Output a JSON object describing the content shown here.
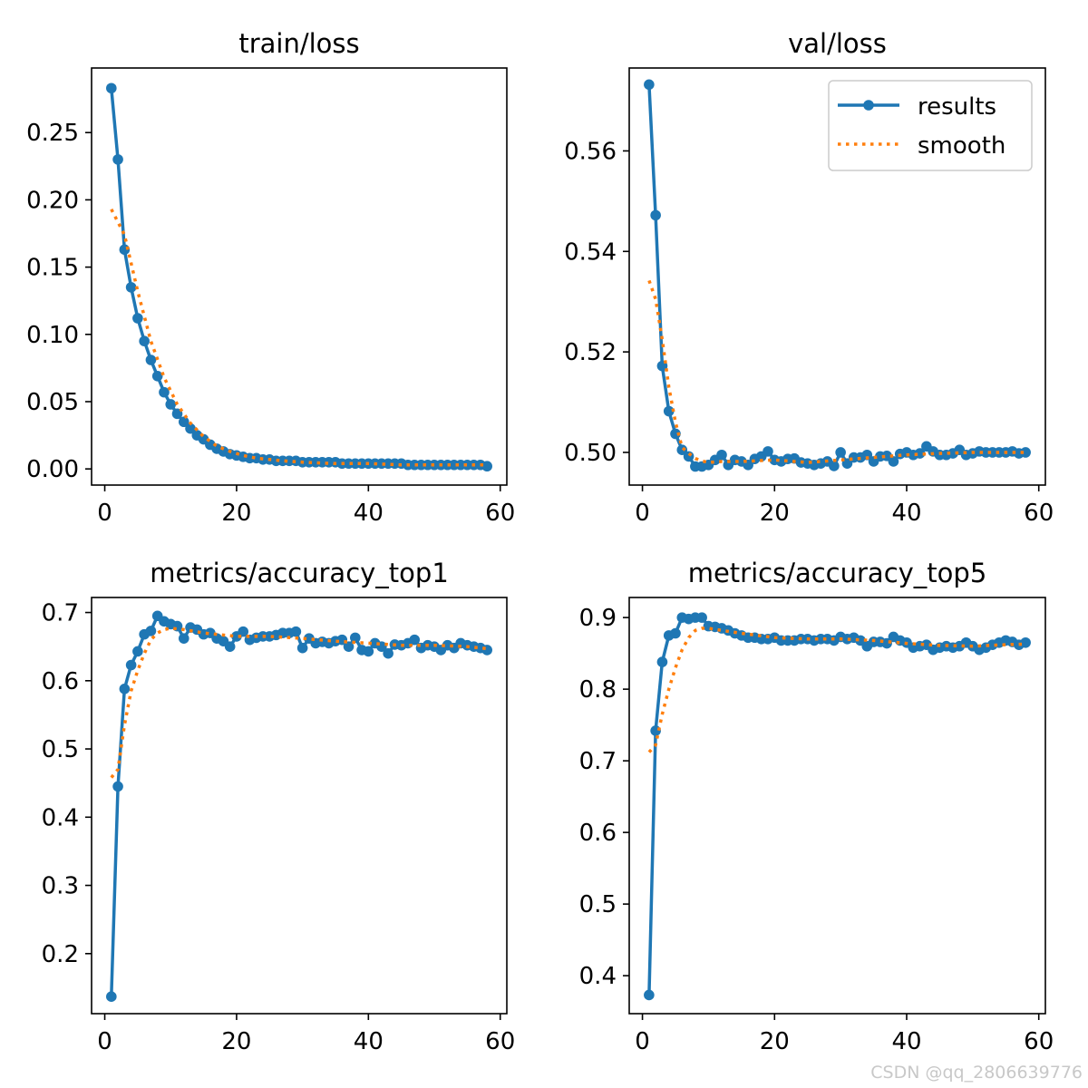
{
  "colors": {
    "results": "#1f77b4",
    "smooth": "#ff7f0e",
    "axes": "#000000",
    "background": "#ffffff"
  },
  "legend": {
    "results": "results",
    "smooth": "smooth",
    "placement": "upper right (val/loss panel)"
  },
  "watermark": "CSDN @qq_2806639776",
  "chart_data": [
    {
      "type": "line",
      "title": "train/loss",
      "xlabel": "",
      "ylabel": "",
      "xlim": [
        -2,
        61
      ],
      "ylim": [
        -0.012,
        0.298
      ],
      "x_ticks": [
        0,
        20,
        40,
        60
      ],
      "y_ticks": [
        0.0,
        0.05,
        0.1,
        0.15,
        0.2,
        0.25
      ],
      "y_tick_labels": [
        "0.00",
        "0.05",
        "0.10",
        "0.15",
        "0.20",
        "0.25"
      ],
      "grid": false,
      "series": [
        {
          "name": "results",
          "marker": "circle",
          "x": [
            1,
            2,
            3,
            4,
            5,
            6,
            7,
            8,
            9,
            10,
            11,
            12,
            13,
            14,
            15,
            16,
            17,
            18,
            19,
            20,
            21,
            22,
            23,
            24,
            25,
            26,
            27,
            28,
            29,
            30,
            31,
            32,
            33,
            34,
            35,
            36,
            37,
            38,
            39,
            40,
            41,
            42,
            43,
            44,
            45,
            46,
            47,
            48,
            49,
            50,
            51,
            52,
            53,
            54,
            55,
            56,
            57,
            58
          ],
          "values": [
            0.283,
            0.23,
            0.163,
            0.135,
            0.112,
            0.095,
            0.081,
            0.069,
            0.057,
            0.048,
            0.041,
            0.035,
            0.03,
            0.025,
            0.022,
            0.018,
            0.015,
            0.013,
            0.011,
            0.01,
            0.009,
            0.008,
            0.008,
            0.007,
            0.007,
            0.006,
            0.006,
            0.006,
            0.006,
            0.005,
            0.005,
            0.005,
            0.005,
            0.005,
            0.005,
            0.004,
            0.004,
            0.004,
            0.004,
            0.004,
            0.004,
            0.004,
            0.004,
            0.004,
            0.004,
            0.003,
            0.003,
            0.003,
            0.003,
            0.003,
            0.003,
            0.003,
            0.003,
            0.003,
            0.003,
            0.003,
            0.003,
            0.002
          ]
        },
        {
          "name": "smooth",
          "style": "dotted",
          "x": [
            1,
            3,
            5,
            7,
            9,
            11,
            13,
            15,
            17,
            19,
            21,
            23,
            25,
            27,
            30,
            35,
            40,
            45,
            50,
            55,
            58
          ],
          "values": [
            0.193,
            0.174,
            0.132,
            0.095,
            0.068,
            0.048,
            0.034,
            0.024,
            0.017,
            0.013,
            0.01,
            0.008,
            0.007,
            0.006,
            0.005,
            0.004,
            0.004,
            0.003,
            0.003,
            0.003,
            0.003
          ]
        }
      ]
    },
    {
      "type": "line",
      "title": "val/loss",
      "xlabel": "",
      "ylabel": "",
      "xlim": [
        -2,
        61
      ],
      "ylim": [
        0.4935,
        0.5765
      ],
      "x_ticks": [
        0,
        20,
        40,
        60
      ],
      "y_ticks": [
        0.5,
        0.52,
        0.54,
        0.56
      ],
      "y_tick_labels": [
        "0.50",
        "0.52",
        "0.54",
        "0.56"
      ],
      "grid": false,
      "legend": "top-right",
      "series": [
        {
          "name": "results",
          "marker": "circle",
          "x": [
            1,
            2,
            3,
            4,
            5,
            6,
            7,
            8,
            9,
            10,
            11,
            12,
            13,
            14,
            15,
            16,
            17,
            18,
            19,
            20,
            21,
            22,
            23,
            24,
            25,
            26,
            27,
            28,
            29,
            30,
            31,
            32,
            33,
            34,
            35,
            36,
            37,
            38,
            39,
            40,
            41,
            42,
            43,
            44,
            45,
            46,
            47,
            48,
            49,
            50,
            51,
            52,
            53,
            54,
            55,
            56,
            57,
            58
          ],
          "values": [
            0.5732,
            0.5472,
            0.5172,
            0.5082,
            0.5037,
            0.5005,
            0.4992,
            0.4972,
            0.4972,
            0.4975,
            0.4985,
            0.4995,
            0.4975,
            0.4985,
            0.4982,
            0.4975,
            0.4987,
            0.4992,
            0.5002,
            0.4985,
            0.4982,
            0.4987,
            0.4988,
            0.498,
            0.4978,
            0.4975,
            0.4978,
            0.4982,
            0.4973,
            0.5,
            0.4978,
            0.499,
            0.499,
            0.4995,
            0.4982,
            0.4992,
            0.4993,
            0.4982,
            0.4997,
            0.5,
            0.4995,
            0.4998,
            0.5012,
            0.5002,
            0.4995,
            0.4995,
            0.4998,
            0.5005,
            0.4995,
            0.4998,
            0.5002,
            0.5,
            0.5,
            0.5,
            0.5,
            0.5002,
            0.4998,
            0.5
          ]
        },
        {
          "name": "smooth",
          "style": "dotted",
          "x": [
            1,
            2,
            3,
            4,
            5,
            6,
            7,
            8,
            9,
            10,
            12,
            15,
            20,
            25,
            30,
            35,
            40,
            45,
            50,
            55,
            58
          ],
          "values": [
            0.5342,
            0.5305,
            0.5225,
            0.513,
            0.506,
            0.501,
            0.4998,
            0.4988,
            0.4983,
            0.498,
            0.4982,
            0.4982,
            0.4985,
            0.498,
            0.4985,
            0.499,
            0.4995,
            0.4998,
            0.5,
            0.5,
            0.5
          ]
        }
      ]
    },
    {
      "type": "line",
      "title": "metrics/accuracy_top1",
      "xlabel": "",
      "ylabel": "",
      "xlim": [
        -2,
        61
      ],
      "ylim": [
        0.112,
        0.722
      ],
      "x_ticks": [
        0,
        20,
        40,
        60
      ],
      "y_ticks": [
        0.2,
        0.3,
        0.4,
        0.5,
        0.6,
        0.7
      ],
      "y_tick_labels": [
        "0.2",
        "0.3",
        "0.4",
        "0.5",
        "0.6",
        "0.7"
      ],
      "grid": false,
      "series": [
        {
          "name": "results",
          "marker": "circle",
          "x": [
            1,
            2,
            3,
            4,
            5,
            6,
            7,
            8,
            9,
            10,
            11,
            12,
            13,
            14,
            15,
            16,
            17,
            18,
            19,
            20,
            21,
            22,
            23,
            24,
            25,
            26,
            27,
            28,
            29,
            30,
            31,
            32,
            33,
            34,
            35,
            36,
            37,
            38,
            39,
            40,
            41,
            42,
            43,
            44,
            45,
            46,
            47,
            48,
            49,
            50,
            51,
            52,
            53,
            54,
            55,
            56,
            57,
            58
          ],
          "values": [
            0.137,
            0.445,
            0.588,
            0.623,
            0.643,
            0.668,
            0.673,
            0.695,
            0.687,
            0.683,
            0.68,
            0.662,
            0.678,
            0.675,
            0.668,
            0.67,
            0.662,
            0.658,
            0.65,
            0.665,
            0.672,
            0.66,
            0.663,
            0.665,
            0.665,
            0.667,
            0.67,
            0.67,
            0.672,
            0.648,
            0.662,
            0.655,
            0.657,
            0.655,
            0.658,
            0.66,
            0.65,
            0.663,
            0.645,
            0.643,
            0.655,
            0.65,
            0.64,
            0.653,
            0.652,
            0.655,
            0.66,
            0.648,
            0.652,
            0.65,
            0.645,
            0.652,
            0.648,
            0.655,
            0.652,
            0.65,
            0.648,
            0.645
          ]
        },
        {
          "name": "smooth",
          "style": "dotted",
          "x": [
            1,
            2,
            3,
            4,
            5,
            6,
            7,
            8,
            9,
            10,
            12,
            15,
            20,
            25,
            30,
            35,
            40,
            45,
            50,
            55,
            58
          ],
          "values": [
            0.458,
            0.47,
            0.535,
            0.585,
            0.615,
            0.64,
            0.66,
            0.67,
            0.675,
            0.677,
            0.675,
            0.67,
            0.665,
            0.665,
            0.662,
            0.658,
            0.655,
            0.652,
            0.652,
            0.65,
            0.647
          ]
        }
      ]
    },
    {
      "type": "line",
      "title": "metrics/accuracy_top5",
      "xlabel": "",
      "ylabel": "",
      "xlim": [
        -2,
        61
      ],
      "ylim": [
        0.347,
        0.928
      ],
      "x_ticks": [
        0,
        20,
        40,
        60
      ],
      "y_ticks": [
        0.4,
        0.5,
        0.6,
        0.7,
        0.8,
        0.9
      ],
      "y_tick_labels": [
        "0.4",
        "0.5",
        "0.6",
        "0.7",
        "0.8",
        "0.9"
      ],
      "grid": false,
      "series": [
        {
          "name": "results",
          "marker": "circle",
          "x": [
            1,
            2,
            3,
            4,
            5,
            6,
            7,
            8,
            9,
            10,
            11,
            12,
            13,
            14,
            15,
            16,
            17,
            18,
            19,
            20,
            21,
            22,
            23,
            24,
            25,
            26,
            27,
            28,
            29,
            30,
            31,
            32,
            33,
            34,
            35,
            36,
            37,
            38,
            39,
            40,
            41,
            42,
            43,
            44,
            45,
            46,
            47,
            48,
            49,
            50,
            51,
            52,
            53,
            54,
            55,
            56,
            57,
            58
          ],
          "values": [
            0.373,
            0.742,
            0.838,
            0.875,
            0.878,
            0.9,
            0.898,
            0.9,
            0.9,
            0.888,
            0.887,
            0.885,
            0.882,
            0.878,
            0.875,
            0.872,
            0.872,
            0.87,
            0.87,
            0.872,
            0.868,
            0.868,
            0.868,
            0.87,
            0.87,
            0.868,
            0.87,
            0.87,
            0.868,
            0.873,
            0.87,
            0.872,
            0.868,
            0.86,
            0.866,
            0.866,
            0.864,
            0.873,
            0.868,
            0.865,
            0.858,
            0.86,
            0.862,
            0.855,
            0.858,
            0.86,
            0.858,
            0.86,
            0.865,
            0.86,
            0.855,
            0.858,
            0.862,
            0.865,
            0.868,
            0.866,
            0.862,
            0.865
          ]
        },
        {
          "name": "smooth",
          "style": "dotted",
          "x": [
            1,
            2,
            3,
            4,
            5,
            6,
            7,
            8,
            9,
            10,
            12,
            15,
            20,
            25,
            30,
            35,
            40,
            45,
            50,
            55,
            58
          ],
          "values": [
            0.712,
            0.722,
            0.765,
            0.8,
            0.83,
            0.855,
            0.872,
            0.882,
            0.885,
            0.885,
            0.882,
            0.878,
            0.872,
            0.87,
            0.87,
            0.868,
            0.864,
            0.861,
            0.86,
            0.862,
            0.863
          ]
        }
      ]
    }
  ]
}
